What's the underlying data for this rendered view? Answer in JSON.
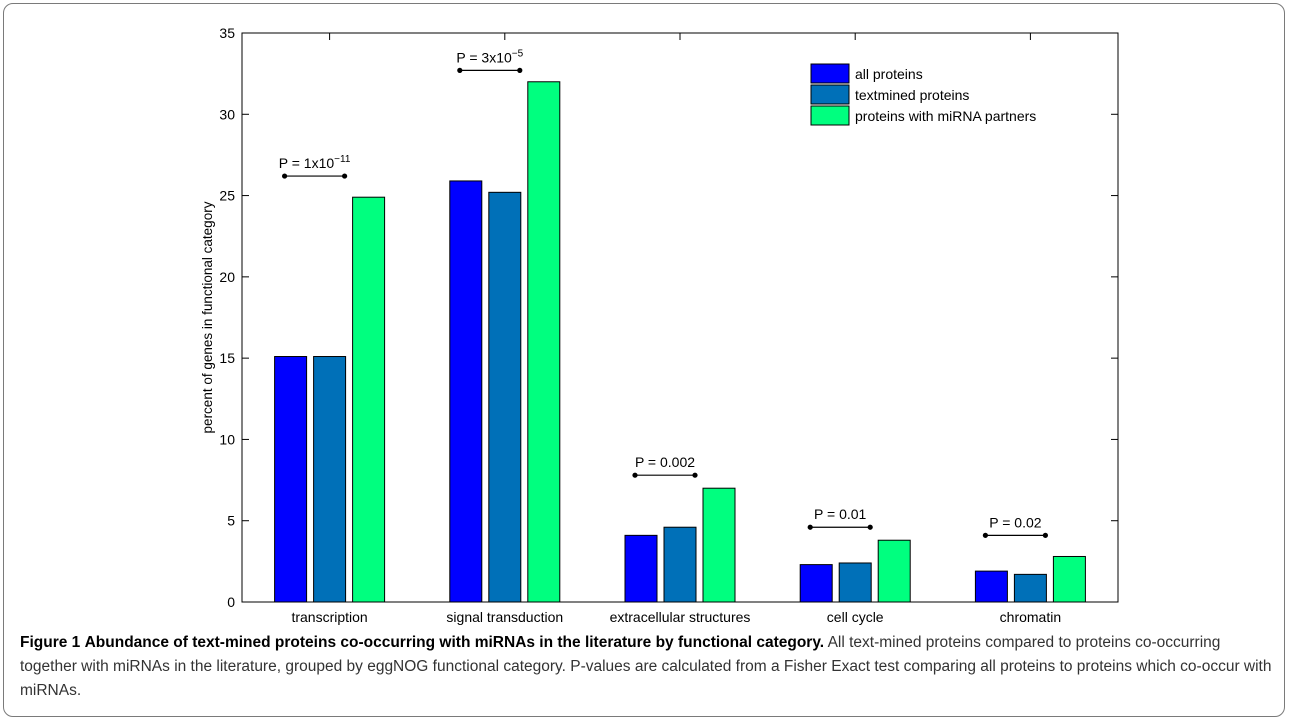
{
  "chart_data": {
    "type": "bar",
    "categories": [
      "transcription",
      "signal transduction",
      "extracellular structures",
      "cell cycle",
      "chromatin"
    ],
    "series": [
      {
        "name": "all proteins",
        "values": [
          15.1,
          25.9,
          4.1,
          2.3,
          1.9
        ]
      },
      {
        "name": "textmined proteins",
        "values": [
          15.1,
          25.2,
          4.6,
          2.4,
          1.7
        ]
      },
      {
        "name": "proteins with miRNA partners",
        "values": [
          24.9,
          32.0,
          7.0,
          3.8,
          2.8
        ]
      }
    ],
    "ylabel": "percent of genes in functional category",
    "xlabel": "",
    "ylim": [
      0,
      35
    ],
    "yticks": [
      0,
      5,
      10,
      15,
      20,
      25,
      30,
      35
    ],
    "grid": false,
    "legend_position": "top-right",
    "colors": [
      "#0000ff",
      "#0070b8",
      "#00ff7f"
    ],
    "annotations": [
      {
        "category": "transcription",
        "base": "P = 1x10",
        "exp": "−11",
        "bracket_y": 26.2
      },
      {
        "category": "signal transduction",
        "base": "P = 3x10",
        "exp": "−5",
        "bracket_y": 32.7
      },
      {
        "category": "extracellular structures",
        "base": "P = 0.002",
        "exp": "",
        "bracket_y": 7.8
      },
      {
        "category": "cell cycle",
        "base": "P = 0.01",
        "exp": "",
        "bracket_y": 4.6
      },
      {
        "category": "chromatin",
        "base": "P = 0.02",
        "exp": "",
        "bracket_y": 4.1
      }
    ]
  },
  "caption": {
    "label": "Figure 1",
    "title": "Abundance of text-mined proteins co-occurring with miRNAs in the literature by functional category.",
    "body": "All text-mined proteins compared to proteins co-occurring together with miRNAs in the literature, grouped by eggNOG functional category. P-values are calculated from a Fisher Exact test comparing all proteins to proteins which co-occur with miRNAs."
  }
}
